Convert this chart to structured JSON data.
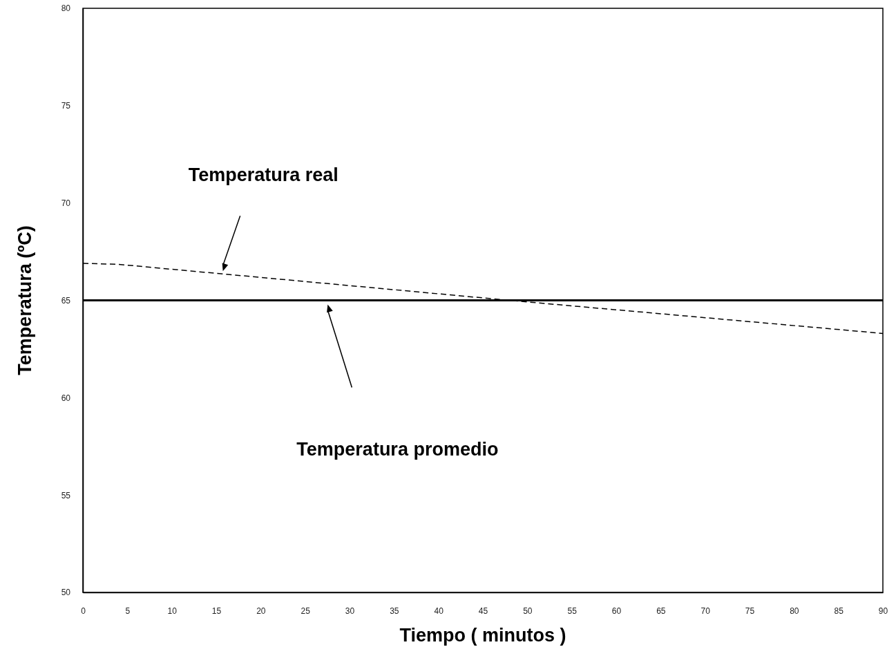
{
  "chart_data": {
    "type": "line",
    "xlabel": "Tiempo ( minutos )",
    "ylabel": "Temperatura (ºC)",
    "xlim": [
      0,
      90
    ],
    "xticks": [
      0,
      5,
      10,
      15,
      20,
      25,
      30,
      35,
      40,
      45,
      50,
      55,
      60,
      65,
      70,
      75,
      80,
      85,
      90
    ],
    "ylim": [
      50,
      80
    ],
    "yticks": [
      50,
      55,
      60,
      65,
      70,
      75,
      80
    ],
    "grid": false,
    "series": [
      {
        "color": "#000000",
        "x": [
          0,
          4,
          48,
          90
        ],
        "values": [
          66.9,
          66.85,
          65.0,
          63.3
        ],
        "line_style": "dashed"
      }
    ],
    "ref_lines": [
      {
        "axis": "y",
        "value": 65,
        "color": "#000000"
      }
    ],
    "annotations": [
      "Temperatura real",
      "Temperatura promedio"
    ]
  }
}
